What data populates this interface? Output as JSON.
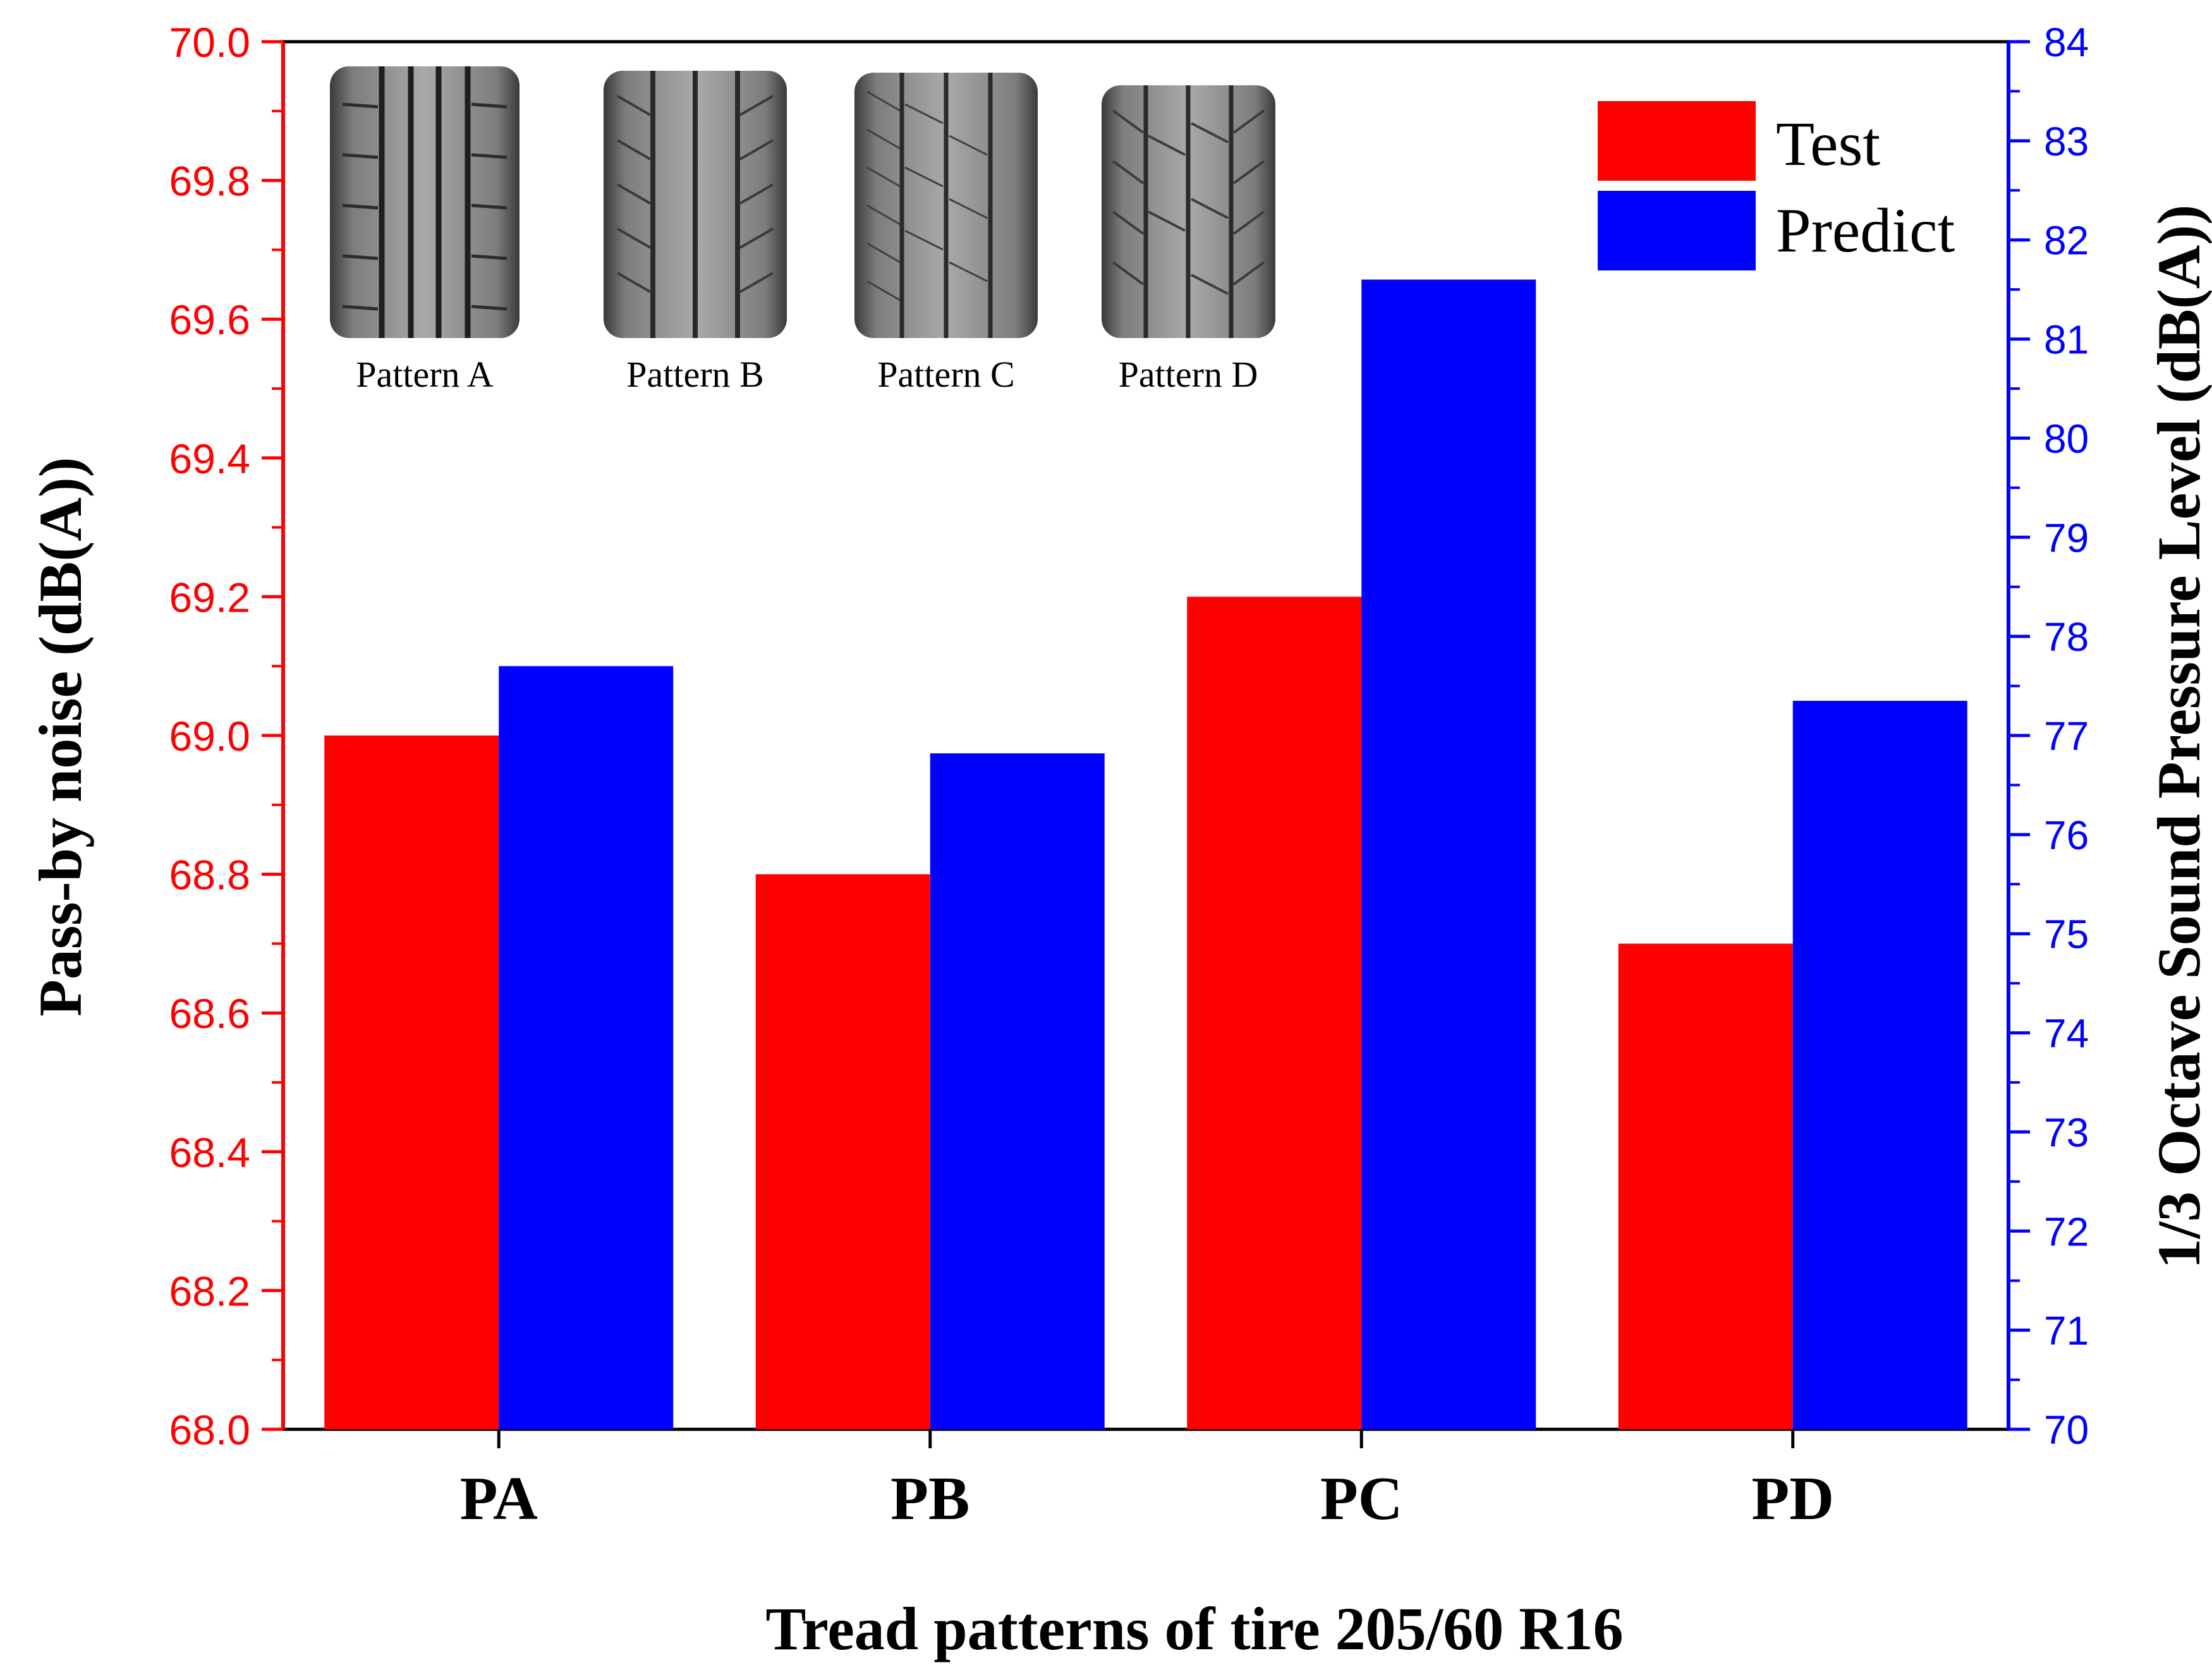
{
  "chart_data": {
    "type": "bar",
    "title": "",
    "xlabel": "Tread patterns of tire  205/60 R16",
    "categories": [
      "PA",
      "PB",
      "PC",
      "PD"
    ],
    "left_axis": {
      "label": "Pass-by noise (dB(A))",
      "ylim": [
        68.0,
        70.0
      ],
      "ticks": [
        "68.0",
        "68.2",
        "68.4",
        "68.6",
        "68.8",
        "69.0",
        "69.2",
        "69.4",
        "69.6",
        "69.8",
        "70.0"
      ],
      "tick_values": [
        68.0,
        68.2,
        68.4,
        68.6,
        68.8,
        69.0,
        69.2,
        69.4,
        69.6,
        69.8,
        70.0
      ],
      "color": "#ff0000"
    },
    "right_axis": {
      "label": "1/3 Octave Sound Pressure Level (dB(A))",
      "ylim": [
        70,
        84
      ],
      "ticks": [
        "70",
        "71",
        "72",
        "73",
        "74",
        "75",
        "76",
        "77",
        "78",
        "79",
        "80",
        "81",
        "82",
        "83",
        "84"
      ],
      "tick_values": [
        70,
        71,
        72,
        73,
        74,
        75,
        76,
        77,
        78,
        79,
        80,
        81,
        82,
        83,
        84
      ],
      "color": "#0000ff"
    },
    "series": [
      {
        "name": "Test",
        "axis": "left",
        "color": "#ff0000",
        "values": [
          69.0,
          68.8,
          69.2,
          68.7
        ]
      },
      {
        "name": "Predict",
        "axis": "right",
        "color": "#0000ff",
        "values": [
          77.7,
          76.82,
          81.6,
          77.35
        ]
      }
    ],
    "legend": {
      "position": "top-right",
      "entries": [
        "Test",
        "Predict"
      ]
    },
    "inset_images": {
      "position": "top-left",
      "labels": [
        "Pattern A",
        "Pattern B",
        "Pattern C",
        "Pattern D"
      ]
    }
  }
}
